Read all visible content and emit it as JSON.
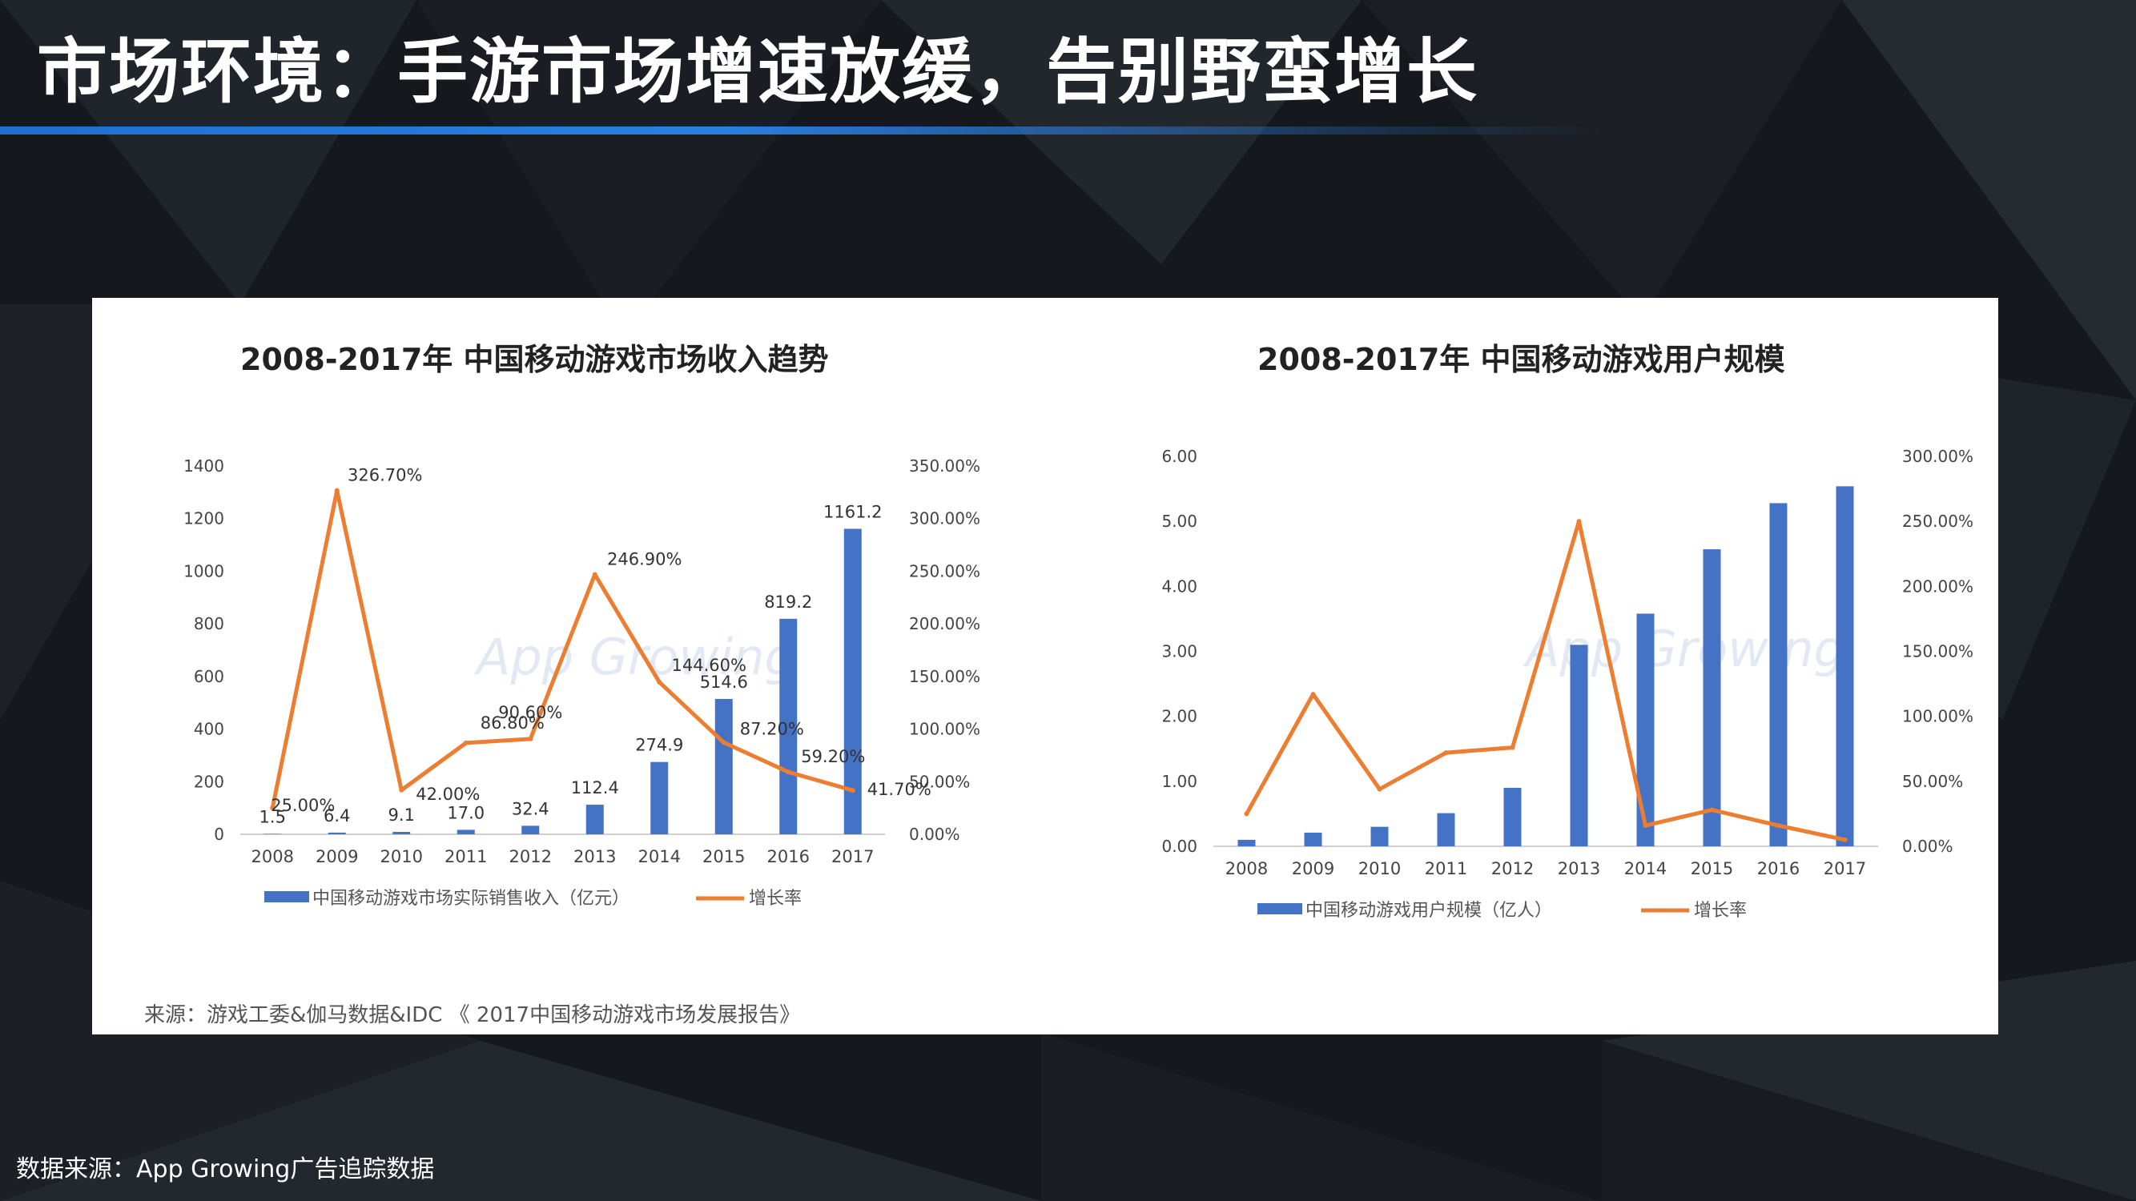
{
  "page": {
    "title": "市场环境：手游市场增速放缓，告别野蛮增长",
    "source_note": "来源：游戏工委&伽马数据&IDC 《 2017中国移动游戏市场发展报告》",
    "footer_note": "数据来源：App Growing广告追踪数据",
    "watermark": "App Growing"
  },
  "colors": {
    "bar": "#4472c4",
    "line": "#ed7d31",
    "title_bar": "#2a7fe0"
  },
  "chart_data": [
    {
      "type": "bar",
      "title": "2008-2017年 中国移动游戏市场收入趋势",
      "categories": [
        "2008",
        "2009",
        "2010",
        "2011",
        "2012",
        "2013",
        "2014",
        "2015",
        "2016",
        "2017"
      ],
      "series": [
        {
          "name": "中国移动游戏市场实际销售收入（亿元）",
          "type": "bar",
          "axis": "left",
          "values": [
            1.5,
            6.4,
            9.1,
            17.0,
            32.4,
            112.4,
            274.9,
            514.6,
            819.2,
            1161.2
          ],
          "labels": [
            "1.5",
            "6.4",
            "9.1",
            "17.0",
            "32.4",
            "112.4",
            "274.9",
            "514.6",
            "819.2",
            "1161.2"
          ]
        },
        {
          "name": "增长率",
          "type": "line",
          "axis": "right",
          "values": [
            25.0,
            326.7,
            42.0,
            86.8,
            90.6,
            246.9,
            144.6,
            87.2,
            59.2,
            41.7
          ],
          "labels": [
            "25.00%",
            "326.70%",
            "42.00%",
            "86.80%",
            "90.60%",
            "246.90%",
            "144.60%",
            "87.20%",
            "59.20%",
            "41.70%"
          ]
        }
      ],
      "left_axis": {
        "min": 0,
        "max": 1400,
        "ticks": [
          "0",
          "200",
          "400",
          "600",
          "800",
          "1000",
          "1200",
          "1400"
        ]
      },
      "right_axis": {
        "min": 0,
        "max": 350,
        "ticks": [
          "0.00%",
          "50.00%",
          "100.00%",
          "150.00%",
          "200.00%",
          "250.00%",
          "300.00%",
          "350.00%"
        ]
      },
      "legend_position": "bottom",
      "grid": false
    },
    {
      "type": "bar",
      "title": "2008-2017年 中国移动游戏用户规模",
      "categories": [
        "2008",
        "2009",
        "2010",
        "2011",
        "2012",
        "2013",
        "2014",
        "2015",
        "2016",
        "2017"
      ],
      "series": [
        {
          "name": "中国移动游戏用户规模（亿人）",
          "type": "bar",
          "axis": "left",
          "values": [
            0.1,
            0.21,
            0.3,
            0.51,
            0.9,
            3.1,
            3.58,
            4.57,
            5.28,
            5.54
          ]
        },
        {
          "name": "增长率",
          "type": "line",
          "axis": "right",
          "values": [
            25,
            117,
            44,
            72,
            76,
            250,
            16,
            28,
            16,
            5
          ]
        }
      ],
      "left_axis": {
        "min": 0,
        "max": 6,
        "ticks": [
          "0.00",
          "1.00",
          "2.00",
          "3.00",
          "4.00",
          "5.00",
          "6.00"
        ]
      },
      "right_axis": {
        "min": 0,
        "max": 300,
        "ticks": [
          "0.00%",
          "50.00%",
          "100.00%",
          "150.00%",
          "200.00%",
          "250.00%",
          "300.00%"
        ]
      },
      "legend_position": "bottom",
      "grid": false
    }
  ]
}
